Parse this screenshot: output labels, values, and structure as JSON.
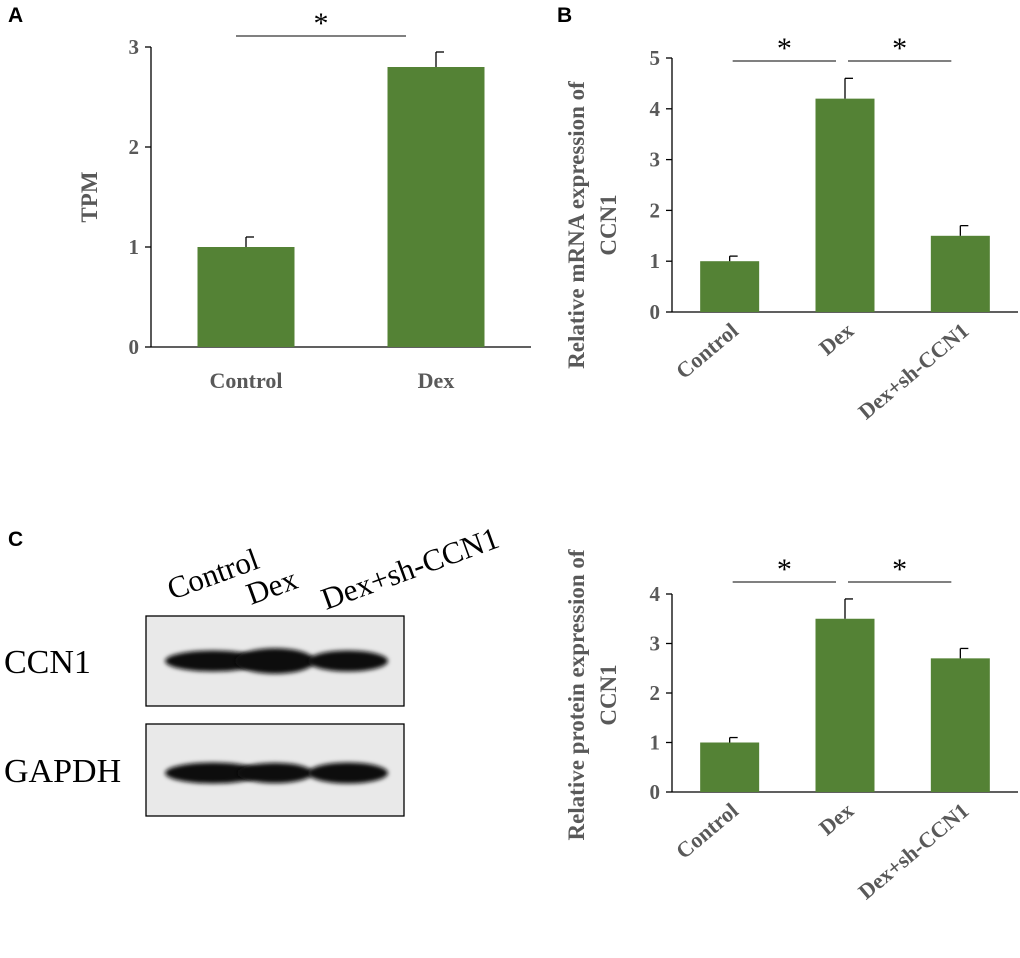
{
  "panels": {
    "a": "A",
    "b": "B",
    "c": "C"
  },
  "bar_color": "#548235",
  "axis_color": "#000000",
  "text_color": "#595959",
  "chart_data": [
    {
      "type": "bar",
      "panel": "A",
      "categories": [
        "Control",
        "Dex"
      ],
      "values": [
        1.0,
        2.8
      ],
      "errors": [
        0.1,
        0.15
      ],
      "ylabel": "TPM",
      "ylim": [
        0,
        3
      ],
      "yticks": [
        0,
        1,
        2,
        3
      ],
      "significance": [
        {
          "from": 0,
          "to": 1,
          "label": "*"
        }
      ]
    },
    {
      "type": "bar",
      "panel": "B",
      "categories": [
        "Control",
        "Dex",
        "Dex+sh-CCN1"
      ],
      "values": [
        1.0,
        4.2,
        1.5
      ],
      "errors": [
        0.1,
        0.4,
        0.2
      ],
      "ylabel_lines": [
        "Relative mRNA expression of",
        "CCN1"
      ],
      "ylim": [
        0,
        5
      ],
      "yticks": [
        0,
        1,
        2,
        3,
        4,
        5
      ],
      "significance": [
        {
          "from": 0,
          "to": 1,
          "label": "*"
        },
        {
          "from": 1,
          "to": 2,
          "label": "*"
        }
      ]
    },
    {
      "type": "bar",
      "panel": "C",
      "categories": [
        "Control",
        "Dex",
        "Dex+sh-CCN1"
      ],
      "values": [
        1.0,
        3.5,
        2.7
      ],
      "errors": [
        0.1,
        0.4,
        0.2
      ],
      "ylabel_lines": [
        "Relative protein expression of",
        "CCN1"
      ],
      "ylim": [
        0,
        4
      ],
      "yticks": [
        0,
        1,
        2,
        3,
        4
      ],
      "significance": [
        {
          "from": 0,
          "to": 1,
          "label": "*"
        },
        {
          "from": 1,
          "to": 2,
          "label": "*"
        }
      ]
    }
  ],
  "western_blot": {
    "lanes": [
      "Control",
      "Dex",
      "Dex+sh-CCN1"
    ],
    "rows": [
      {
        "label": "CCN1",
        "band_intensity": [
          1.0,
          1.3,
          1.0
        ]
      },
      {
        "label": "GAPDH",
        "band_intensity": [
          1.0,
          0.95,
          1.0
        ]
      }
    ]
  }
}
